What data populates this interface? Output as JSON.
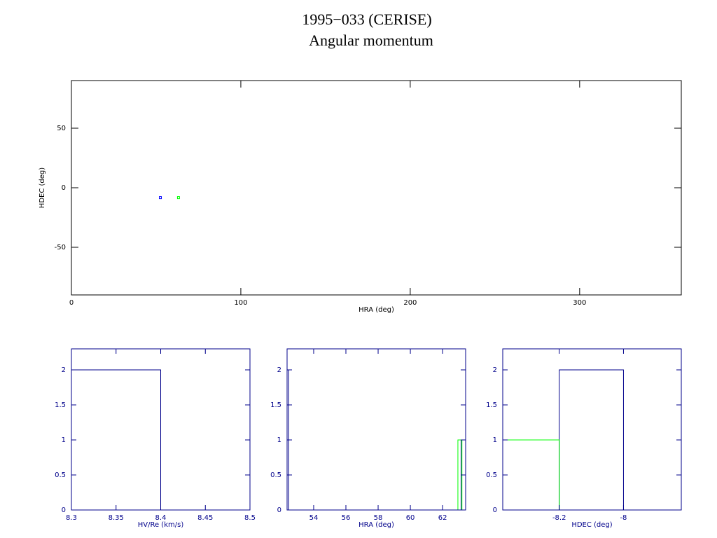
{
  "chart_data": [
    {
      "type": "scatter",
      "title": "1995−033 (CERISE)",
      "subtitle": "Angular momentum",
      "xlabel": "HRA (deg)",
      "ylabel": "HDEC (deg)",
      "axis_color": "#000000",
      "xlim": [
        0,
        360
      ],
      "ylim": [
        -90,
        90
      ],
      "xticks": [
        0,
        100,
        200,
        300
      ],
      "yticks": [
        -50,
        0,
        50
      ],
      "series": [
        {
          "color": "#0000ff",
          "x": [
            52.5
          ],
          "values": [
            -8.3
          ]
        },
        {
          "color": "#00ff00",
          "x": [
            63.2
          ],
          "values": [
            -8.3
          ]
        }
      ]
    },
    {
      "type": "histogram",
      "xlabel": "HV/Re (km/s)",
      "axis_color": "#00008b",
      "xlim": [
        8.3,
        8.5
      ],
      "ylim": [
        0,
        2.3
      ],
      "xticks": [
        8.3,
        8.35,
        8.4,
        8.45,
        8.5
      ],
      "yticks": [
        0,
        0.5,
        1,
        1.5,
        2
      ],
      "series": [
        {
          "color": "#00008b",
          "bins": [
            8.3,
            8.4
          ],
          "values": [
            2
          ]
        }
      ]
    },
    {
      "type": "histogram",
      "xlabel": "HRA (deg)",
      "axis_color": "#00008b",
      "xlim": [
        52.35,
        63.43
      ],
      "ylim": [
        0,
        2.3
      ],
      "xticks": [
        54,
        56,
        58,
        60,
        62
      ],
      "yticks": [
        0,
        0.5,
        1,
        1.5,
        2
      ],
      "series": [
        {
          "color": "#00008b",
          "bins": [
            52.35,
            52.45,
            63.15,
            63.43
          ],
          "values": [
            2,
            0,
            1
          ]
        },
        {
          "color": "#00ff00",
          "bins": [
            62.95,
            63.2
          ],
          "values": [
            1
          ]
        }
      ]
    },
    {
      "type": "histogram",
      "xlabel": "HDEC (deg)",
      "axis_color": "#00008b",
      "xlim": [
        -8.376,
        -7.82
      ],
      "ylim": [
        0,
        2.3
      ],
      "xticks": [
        -8.2,
        -8
      ],
      "yticks": [
        0,
        0.5,
        1,
        1.5,
        2
      ],
      "series": [
        {
          "color": "#00008b",
          "bins": [
            -8.2,
            -8.0
          ],
          "values": [
            2
          ]
        },
        {
          "color": "#00ff00",
          "bins": [
            -8.4,
            -8.2
          ],
          "values": [
            1
          ]
        }
      ]
    }
  ]
}
